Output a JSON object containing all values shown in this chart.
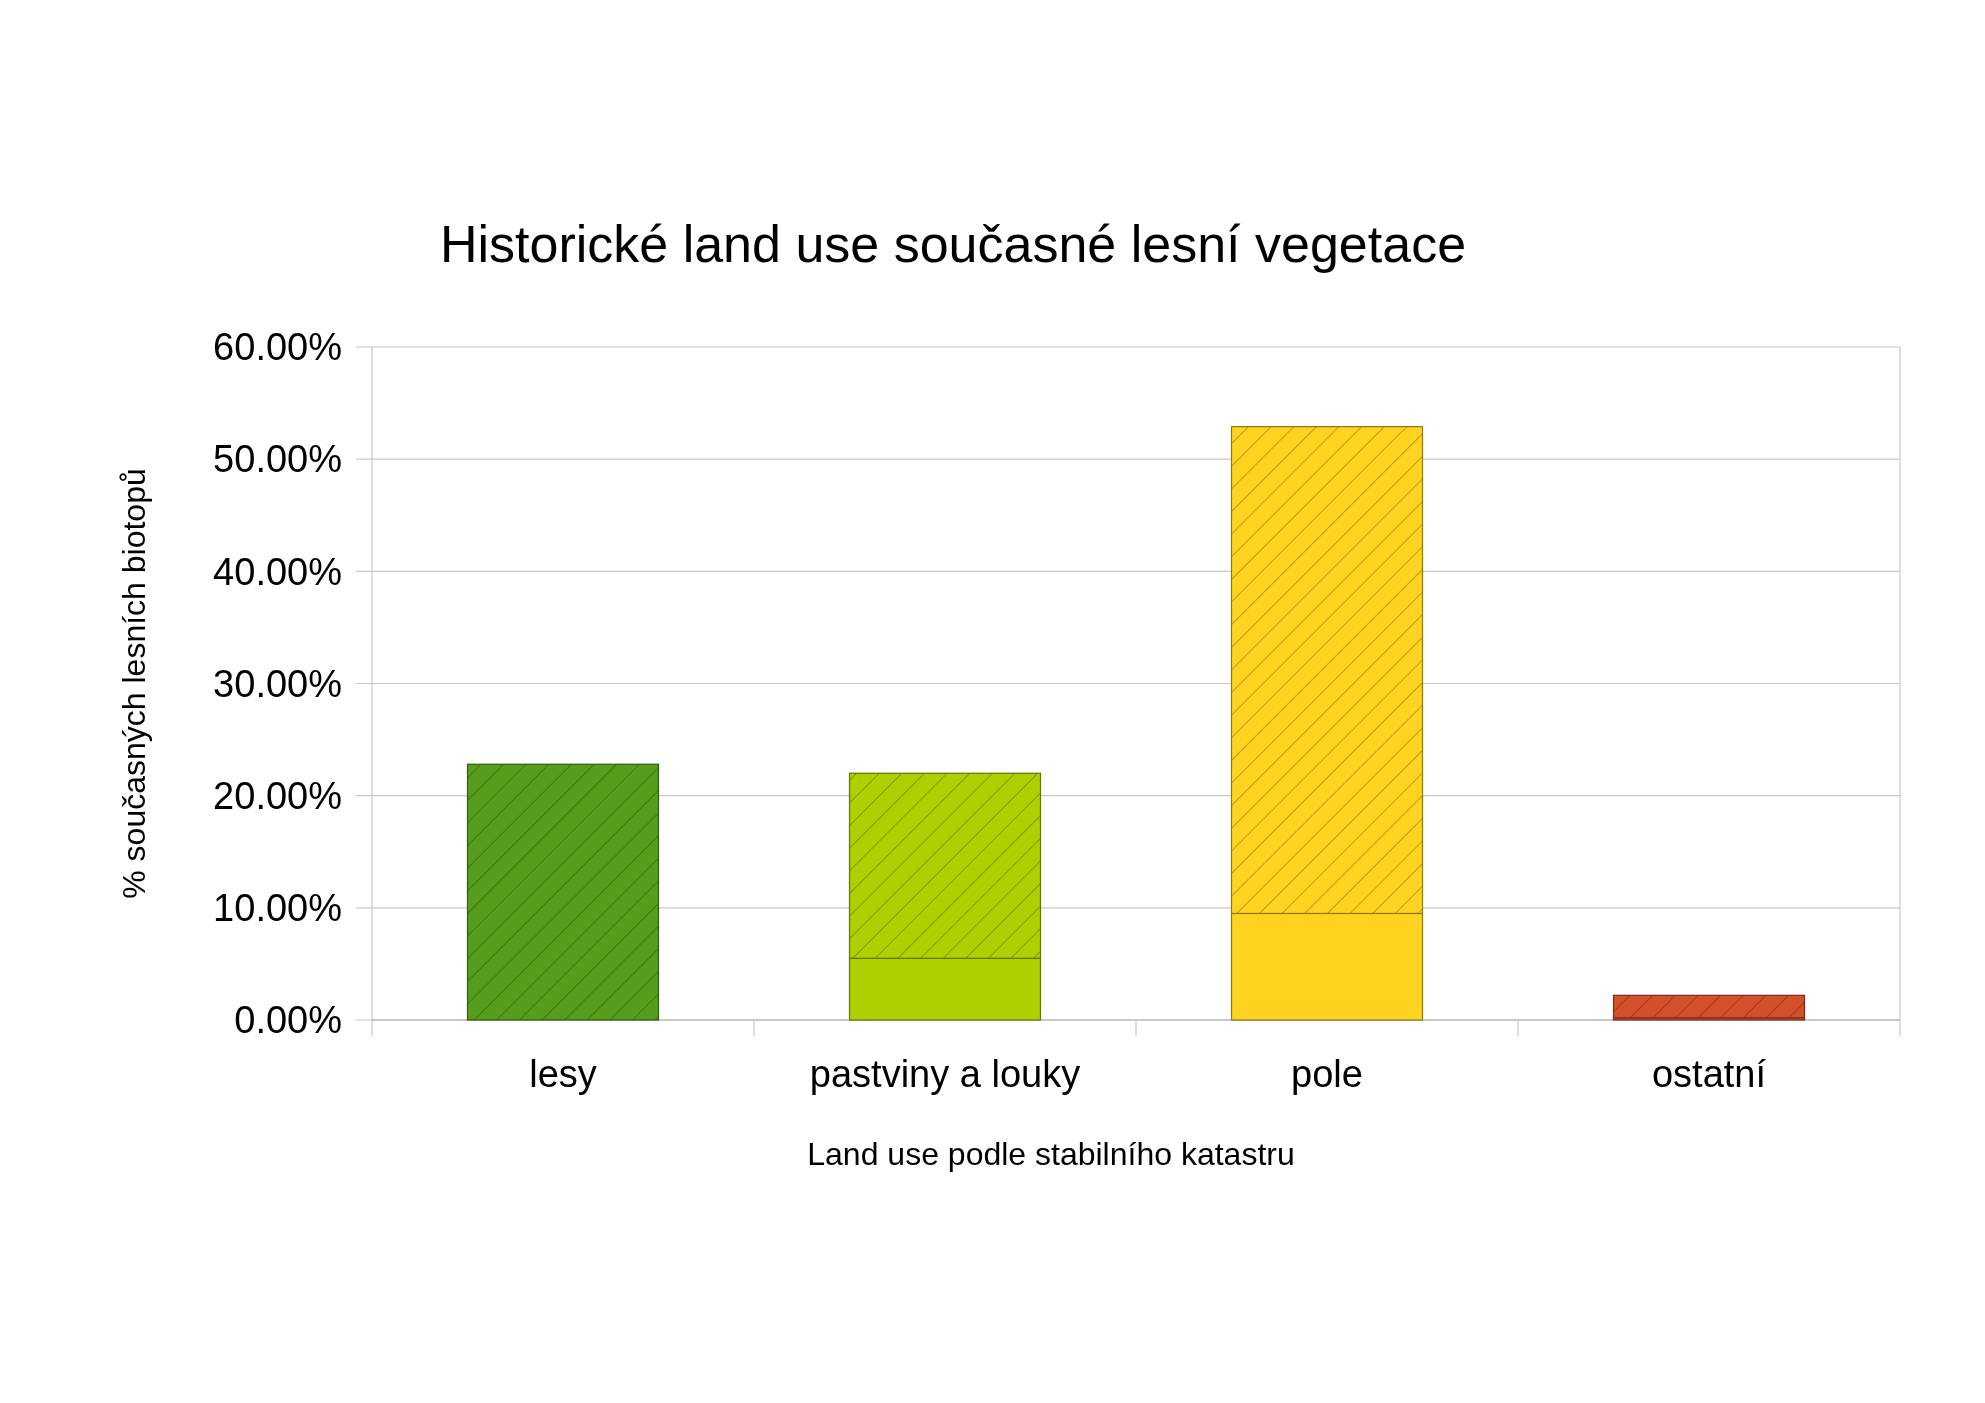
{
  "chart_data": {
    "type": "bar",
    "title": "Historické land use současné lesní vegetace",
    "xlabel": "Land use podle stabilního katastru",
    "ylabel": "% současných lesních biotopů",
    "categories": [
      "lesy",
      "pastviny a louky",
      "pole",
      "ostatní"
    ],
    "stacked": true,
    "series": [
      {
        "values": [
          0,
          5.5,
          9.5,
          0.2
        ],
        "colors": [
          "#579d1c",
          "#aecf00",
          "#ffd320",
          "#d4502c"
        ]
      },
      {
        "values": [
          22.8,
          16.5,
          43.4,
          2.0
        ],
        "colors": [
          "#579d1c",
          "#aecf00",
          "#ffd320",
          "#d4502c"
        ]
      }
    ],
    "ylim": [
      0,
      60
    ],
    "yticks": [
      {
        "value": 0,
        "label": "0.00%"
      },
      {
        "value": 10,
        "label": "10.00%"
      },
      {
        "value": 20,
        "label": "20.00%"
      },
      {
        "value": 30,
        "label": "30.00%"
      },
      {
        "value": 40,
        "label": "40.00%"
      },
      {
        "value": 50,
        "label": "50.00%"
      },
      {
        "value": 60,
        "label": "60.00%"
      }
    ],
    "grid": "y"
  }
}
